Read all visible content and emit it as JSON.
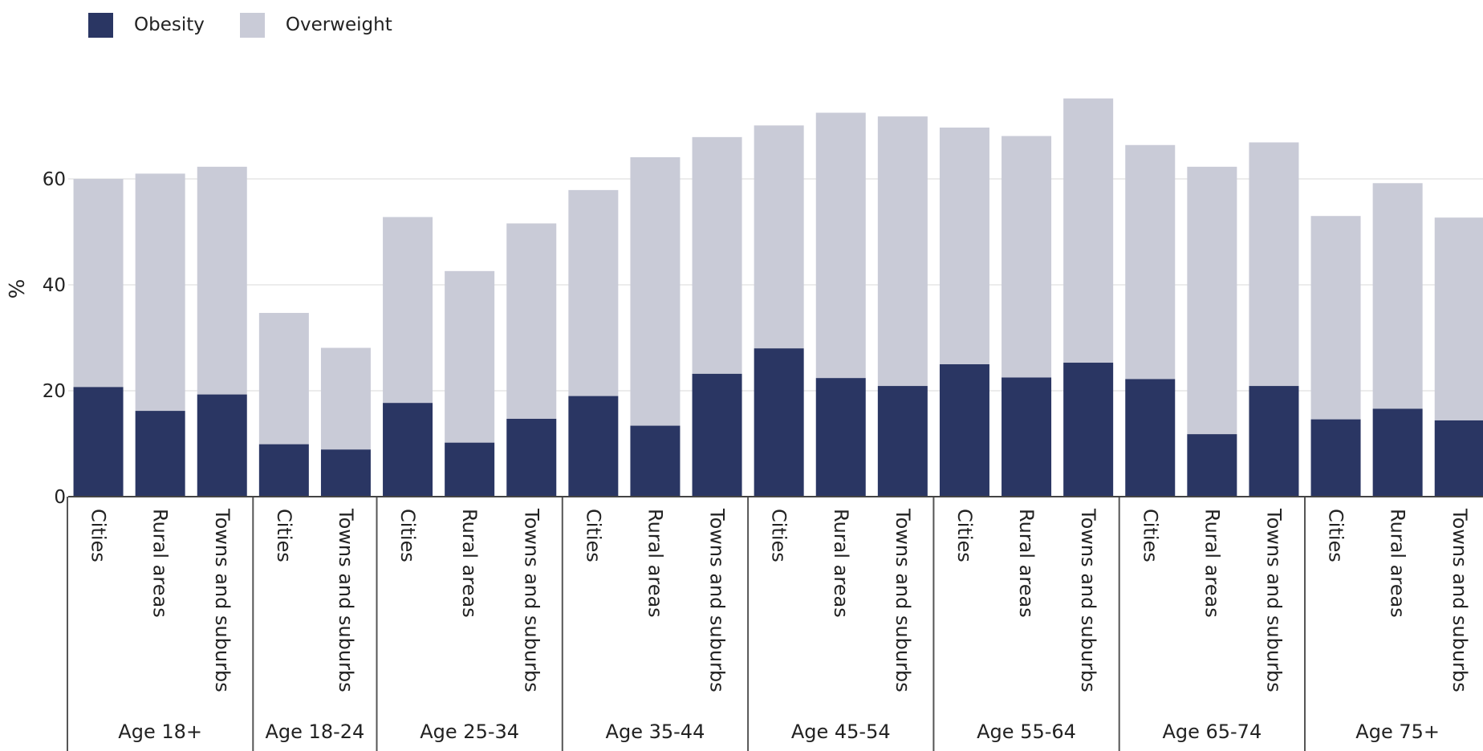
{
  "chart_data": {
    "type": "bar",
    "stacked": true,
    "ylabel": "%",
    "ylim": [
      0,
      75
    ],
    "yticks": [
      0,
      20,
      40,
      60
    ],
    "grid": true,
    "legend_position": "top-left",
    "colors": {
      "Obesity": "#2a3663",
      "Overweight": "#c9cbd7"
    },
    "groups": [
      {
        "label": "Age 18+",
        "categories": [
          "Cities",
          "Rural areas",
          "Towns and suburbs"
        ],
        "obesity": [
          20.7,
          16.2,
          19.3
        ],
        "total": [
          60.0,
          61.0,
          62.3
        ]
      },
      {
        "label": "Age 18-24",
        "categories": [
          "Cities",
          "Towns and suburbs"
        ],
        "obesity": [
          9.9,
          8.9
        ],
        "total": [
          34.7,
          28.1
        ]
      },
      {
        "label": "Age 25-34",
        "categories": [
          "Cities",
          "Rural areas",
          "Towns and suburbs"
        ],
        "obesity": [
          17.7,
          10.2,
          14.7
        ],
        "total": [
          52.8,
          42.6,
          51.6
        ]
      },
      {
        "label": "Age 35-44",
        "categories": [
          "Cities",
          "Rural areas",
          "Towns and suburbs"
        ],
        "obesity": [
          19.0,
          13.4,
          23.2
        ],
        "total": [
          57.9,
          64.1,
          67.9
        ]
      },
      {
        "label": "Age 45-54",
        "categories": [
          "Cities",
          "Rural areas",
          "Towns and suburbs"
        ],
        "obesity": [
          28.0,
          22.4,
          20.9
        ],
        "total": [
          70.1,
          72.5,
          71.8
        ]
      },
      {
        "label": "Age 55-64",
        "categories": [
          "Cities",
          "Rural areas",
          "Towns and suburbs"
        ],
        "obesity": [
          25.0,
          22.5,
          25.3
        ],
        "total": [
          69.7,
          68.1,
          75.2
        ]
      },
      {
        "label": "Age 65-74",
        "categories": [
          "Cities",
          "Rural areas",
          "Towns and suburbs"
        ],
        "obesity": [
          22.2,
          11.8,
          20.9
        ],
        "total": [
          66.4,
          62.3,
          66.9
        ]
      },
      {
        "label": "Age 75+",
        "categories": [
          "Cities",
          "Rural areas",
          "Towns and suburbs"
        ],
        "obesity": [
          14.6,
          16.6,
          14.4
        ],
        "total": [
          53.0,
          59.2,
          52.7
        ]
      }
    ],
    "series": [
      {
        "name": "Obesity"
      },
      {
        "name": "Overweight"
      }
    ]
  }
}
